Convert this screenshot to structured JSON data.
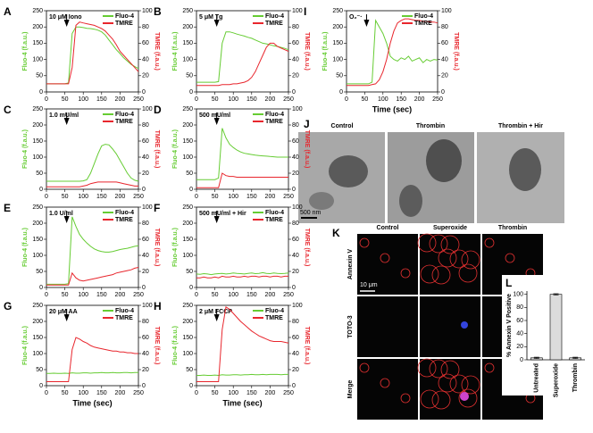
{
  "chart_data": [
    {
      "type": "line",
      "panel": "A",
      "annotation": "10 μM Iono",
      "x": [
        0,
        10,
        20,
        30,
        40,
        50,
        60,
        70,
        80,
        90,
        100,
        110,
        120,
        130,
        140,
        150,
        160,
        170,
        180,
        190,
        200,
        210,
        220,
        230,
        240,
        250
      ],
      "series": [
        {
          "name": "Fluo-4",
          "color": "#66cc33",
          "values": [
            25,
            25,
            25,
            25,
            25,
            25,
            28,
            180,
            200,
            200,
            198,
            196,
            195,
            193,
            190,
            185,
            175,
            160,
            145,
            130,
            118,
            105,
            95,
            85,
            78,
            72
          ]
        },
        {
          "name": "TMRE",
          "color": "#e8262d",
          "axis": "y2",
          "values": [
            10,
            10,
            10,
            10,
            10,
            10,
            10,
            30,
            82,
            86,
            85,
            84,
            83,
            82,
            80,
            78,
            75,
            70,
            65,
            58,
            50,
            45,
            40,
            35,
            30,
            25
          ]
        }
      ],
      "xlim": [
        0,
        250
      ],
      "xticks": [
        0,
        50,
        100,
        150,
        200,
        250
      ],
      "ylim": [
        0,
        250
      ],
      "yticks": [
        0,
        50,
        100,
        150,
        200,
        250
      ],
      "y2lim": [
        0,
        100
      ],
      "y2ticks": [
        0,
        20,
        40,
        60,
        80,
        100
      ],
      "ylabel": "Fluo-4 (f.a.u.)",
      "y2label": "TMRE (f.a.u.)"
    },
    {
      "type": "line",
      "panel": "B",
      "annotation": "5 μM Tg",
      "x": [
        0,
        10,
        20,
        30,
        40,
        50,
        60,
        70,
        80,
        90,
        100,
        110,
        120,
        130,
        140,
        150,
        160,
        170,
        180,
        190,
        200,
        210,
        220,
        230,
        240,
        250
      ],
      "series": [
        {
          "name": "Fluo-4",
          "color": "#66cc33",
          "values": [
            30,
            30,
            30,
            30,
            30,
            30,
            32,
            150,
            185,
            185,
            182,
            178,
            175,
            172,
            168,
            165,
            160,
            155,
            150,
            148,
            145,
            142,
            140,
            137,
            134,
            130
          ]
        },
        {
          "name": "TMRE",
          "color": "#e8262d",
          "axis": "y2",
          "values": [
            8,
            8,
            8,
            8,
            8,
            8,
            8,
            9,
            9,
            9,
            10,
            10,
            11,
            12,
            14,
            18,
            25,
            35,
            45,
            55,
            60,
            60,
            56,
            54,
            52,
            50
          ]
        }
      ],
      "xlim": [
        0,
        250
      ],
      "xticks": [
        0,
        50,
        100,
        150,
        200,
        250
      ],
      "ylim": [
        0,
        250
      ],
      "yticks": [
        0,
        50,
        100,
        150,
        200,
        250
      ],
      "y2lim": [
        0,
        100
      ],
      "y2ticks": [
        0,
        20,
        40,
        60,
        80,
        100
      ],
      "ylabel": "Fluo-4 (f.a.u.)",
      "y2label": "TMRE (f.a.u.)"
    },
    {
      "type": "line",
      "panel": "C",
      "annotation": "1.0 mU/ml",
      "x": [
        0,
        10,
        20,
        30,
        40,
        50,
        60,
        70,
        80,
        90,
        100,
        110,
        120,
        130,
        140,
        150,
        160,
        170,
        180,
        190,
        200,
        210,
        220,
        230,
        240,
        250
      ],
      "series": [
        {
          "name": "Fluo-4",
          "color": "#66cc33",
          "values": [
            25,
            25,
            25,
            25,
            25,
            25,
            25,
            25,
            25,
            25,
            26,
            30,
            50,
            80,
            110,
            135,
            140,
            138,
            125,
            110,
            90,
            70,
            50,
            35,
            28,
            25
          ]
        },
        {
          "name": "TMRE",
          "color": "#e8262d",
          "axis": "y2",
          "values": [
            3,
            3,
            3,
            3,
            3,
            3,
            3,
            3,
            3,
            3,
            4,
            5,
            7,
            8,
            9,
            9,
            9,
            9,
            9,
            9,
            8,
            7,
            6,
            5,
            4,
            4
          ]
        }
      ],
      "xlim": [
        0,
        250
      ],
      "xticks": [
        0,
        50,
        100,
        150,
        200,
        250
      ],
      "ylim": [
        0,
        250
      ],
      "yticks": [
        0,
        50,
        100,
        150,
        200,
        250
      ],
      "y2lim": [
        0,
        100
      ],
      "y2ticks": [
        0,
        20,
        40,
        60,
        80,
        100
      ],
      "ylabel": "Fluo-4 (f.a.u.)",
      "y2label": "TMRE (f.a.u.)"
    },
    {
      "type": "line",
      "panel": "D",
      "annotation": "500 mU/ml",
      "x": [
        0,
        10,
        20,
        30,
        40,
        50,
        60,
        70,
        80,
        90,
        100,
        110,
        120,
        130,
        140,
        150,
        160,
        170,
        180,
        190,
        200,
        210,
        220,
        230,
        240,
        250
      ],
      "series": [
        {
          "name": "Fluo-4",
          "color": "#66cc33",
          "values": [
            30,
            30,
            30,
            30,
            30,
            30,
            35,
            190,
            160,
            140,
            130,
            122,
            116,
            112,
            110,
            108,
            106,
            105,
            104,
            103,
            102,
            101,
            100,
            100,
            100,
            100
          ]
        },
        {
          "name": "TMRE",
          "color": "#e8262d",
          "axis": "y2",
          "values": [
            2,
            2,
            2,
            2,
            2,
            2,
            2,
            20,
            17,
            16,
            16,
            15,
            15,
            15,
            15,
            15,
            15,
            15,
            15,
            15,
            15,
            15,
            15,
            15,
            15,
            15
          ]
        }
      ],
      "xlim": [
        0,
        250
      ],
      "xticks": [
        0,
        50,
        100,
        150,
        200,
        250
      ],
      "ylim": [
        0,
        250
      ],
      "yticks": [
        0,
        50,
        100,
        150,
        200,
        250
      ],
      "y2lim": [
        0,
        100
      ],
      "y2ticks": [
        0,
        20,
        40,
        60,
        80,
        100
      ],
      "ylabel": "Fluo-4 (f.a.u.)",
      "y2label": "TMRE (f.a.u.)"
    },
    {
      "type": "line",
      "panel": "E",
      "annotation": "1.0 U/ml",
      "x": [
        0,
        10,
        20,
        30,
        40,
        50,
        60,
        70,
        80,
        90,
        100,
        110,
        120,
        130,
        140,
        150,
        160,
        170,
        180,
        190,
        200,
        210,
        220,
        230,
        240,
        250
      ],
      "series": [
        {
          "name": "Fluo-4",
          "color": "#66cc33",
          "values": [
            10,
            10,
            10,
            10,
            10,
            10,
            12,
            220,
            190,
            165,
            150,
            138,
            128,
            120,
            115,
            112,
            110,
            110,
            112,
            115,
            118,
            120,
            122,
            125,
            128,
            130
          ]
        },
        {
          "name": "TMRE",
          "color": "#e8262d",
          "axis": "y2",
          "values": [
            3,
            3,
            3,
            3,
            3,
            3,
            3,
            18,
            12,
            9,
            8,
            9,
            10,
            11,
            12,
            13,
            14,
            15,
            16,
            18,
            19,
            20,
            21,
            22,
            24,
            25
          ]
        }
      ],
      "xlim": [
        0,
        250
      ],
      "xticks": [
        0,
        50,
        100,
        150,
        200,
        250
      ],
      "ylim": [
        0,
        250
      ],
      "yticks": [
        0,
        50,
        100,
        150,
        200,
        250
      ],
      "y2lim": [
        0,
        100
      ],
      "y2ticks": [
        0,
        20,
        40,
        60,
        80,
        100
      ],
      "ylabel": "Fluo-4 (f.a.u.)",
      "y2label": "TMRE (f.a.u.)"
    },
    {
      "type": "line",
      "panel": "F",
      "annotation": "500 mU/ml + Hir",
      "x": [
        0,
        10,
        20,
        30,
        40,
        50,
        60,
        70,
        80,
        90,
        100,
        110,
        120,
        130,
        140,
        150,
        160,
        170,
        180,
        190,
        200,
        210,
        220,
        230,
        240,
        250
      ],
      "series": [
        {
          "name": "Fluo-4",
          "color": "#66cc33",
          "values": [
            42,
            41,
            43,
            42,
            40,
            42,
            43,
            44,
            42,
            43,
            45,
            44,
            43,
            42,
            44,
            45,
            43,
            44,
            46,
            44,
            43,
            45,
            44,
            43,
            44,
            45
          ]
        },
        {
          "name": "TMRE",
          "color": "#e8262d",
          "axis": "y2",
          "values": [
            12,
            12,
            13,
            12,
            12,
            13,
            12,
            14,
            13,
            13,
            14,
            13,
            13,
            14,
            13,
            14,
            14,
            13,
            14,
            14,
            13,
            14,
            14,
            13,
            14,
            14
          ]
        }
      ],
      "xlim": [
        0,
        250
      ],
      "xticks": [
        0,
        50,
        100,
        150,
        200,
        250
      ],
      "ylim": [
        0,
        250
      ],
      "yticks": [
        0,
        50,
        100,
        150,
        200,
        250
      ],
      "y2lim": [
        0,
        100
      ],
      "y2ticks": [
        0,
        20,
        40,
        60,
        80,
        100
      ],
      "ylabel": "Fluo-4 (f.a.u.)",
      "y2label": "TMRE (f.a.u.)"
    },
    {
      "type": "line",
      "panel": "G",
      "annotation": "20 μM AA",
      "x": [
        0,
        10,
        20,
        30,
        40,
        50,
        60,
        70,
        80,
        90,
        100,
        110,
        120,
        130,
        140,
        150,
        160,
        170,
        180,
        190,
        200,
        210,
        220,
        230,
        240,
        250
      ],
      "series": [
        {
          "name": "Fluo-4",
          "color": "#66cc33",
          "values": [
            38,
            38,
            39,
            38,
            38,
            39,
            38,
            40,
            39,
            39,
            40,
            40,
            39,
            40,
            40,
            41,
            40,
            40,
            41,
            40,
            40,
            41,
            41,
            40,
            41,
            41
          ]
        },
        {
          "name": "TMRE",
          "color": "#e8262d",
          "axis": "y2",
          "values": [
            5,
            5,
            5,
            5,
            5,
            5,
            5,
            45,
            60,
            58,
            55,
            53,
            50,
            48,
            47,
            46,
            45,
            44,
            43,
            43,
            42,
            42,
            41,
            41,
            40,
            40
          ]
        }
      ],
      "xlim": [
        0,
        250
      ],
      "xticks": [
        0,
        50,
        100,
        150,
        200,
        250
      ],
      "ylim": [
        0,
        250
      ],
      "yticks": [
        0,
        50,
        100,
        150,
        200,
        250
      ],
      "y2lim": [
        0,
        100
      ],
      "y2ticks": [
        0,
        20,
        40,
        60,
        80,
        100
      ],
      "ylabel": "Fluo-4 (f.a.u.)",
      "y2label": "TMRE (f.a.u.)",
      "xlabel": "Time (sec)"
    },
    {
      "type": "line",
      "panel": "H",
      "annotation": "2 μM FCCP",
      "x": [
        0,
        10,
        20,
        30,
        40,
        50,
        60,
        70,
        80,
        90,
        100,
        110,
        120,
        130,
        140,
        150,
        160,
        170,
        180,
        190,
        200,
        210,
        220,
        230,
        240,
        250
      ],
      "series": [
        {
          "name": "Fluo-4",
          "color": "#66cc33",
          "values": [
            32,
            32,
            33,
            32,
            32,
            33,
            32,
            34,
            33,
            33,
            34,
            34,
            33,
            34,
            34,
            35,
            34,
            34,
            35,
            34,
            35,
            35,
            35,
            34,
            35,
            35
          ]
        },
        {
          "name": "TMRE",
          "color": "#e8262d",
          "axis": "y2",
          "values": [
            5,
            5,
            5,
            5,
            5,
            5,
            5,
            70,
            98,
            95,
            90,
            85,
            80,
            76,
            72,
            68,
            65,
            62,
            60,
            58,
            56,
            55,
            55,
            55,
            54,
            53
          ]
        }
      ],
      "xlim": [
        0,
        250
      ],
      "xticks": [
        0,
        50,
        100,
        150,
        200,
        250
      ],
      "ylim": [
        0,
        250
      ],
      "yticks": [
        0,
        50,
        100,
        150,
        200,
        250
      ],
      "y2lim": [
        0,
        100
      ],
      "y2ticks": [
        0,
        20,
        40,
        60,
        80,
        100
      ],
      "ylabel": "Fluo-4 (f.a.u.)",
      "y2label": "TMRE (f.a.u.)",
      "xlabel": "Time (sec)"
    },
    {
      "type": "line",
      "panel": "I",
      "annotation": "O₂⁻·",
      "x": [
        0,
        10,
        20,
        30,
        40,
        50,
        60,
        70,
        80,
        90,
        100,
        110,
        120,
        130,
        140,
        150,
        160,
        170,
        180,
        190,
        200,
        210,
        220,
        230,
        240,
        250
      ],
      "series": [
        {
          "name": "Fluo-4",
          "color": "#66cc33",
          "values": [
            25,
            25,
            25,
            25,
            25,
            25,
            25,
            30,
            220,
            200,
            180,
            150,
            110,
            100,
            95,
            105,
            100,
            110,
            95,
            100,
            105,
            90,
            100,
            95,
            100,
            98
          ]
        },
        {
          "name": "TMRE",
          "color": "#e8262d",
          "axis": "y2",
          "values": [
            8,
            8,
            8,
            8,
            8,
            8,
            8,
            9,
            10,
            15,
            25,
            40,
            60,
            75,
            85,
            88,
            90,
            90,
            89,
            88,
            88,
            87,
            87,
            86,
            86,
            85
          ]
        }
      ],
      "xlim": [
        0,
        250
      ],
      "xticks": [
        0,
        50,
        100,
        150,
        200,
        250
      ],
      "ylim": [
        0,
        250
      ],
      "yticks": [
        0,
        50,
        100,
        150,
        200,
        250
      ],
      "y2lim": [
        0,
        100
      ],
      "y2ticks": [
        0,
        20,
        40,
        60,
        80,
        100
      ],
      "ylabel": "Fluo-4 (f.a.u.)",
      "y2label": "TMRE (f.a.u.)",
      "xlabel": "Time (sec)"
    },
    {
      "type": "bar",
      "panel": "L",
      "categories": [
        "Untreated",
        "Superoxide",
        "Thrombin"
      ],
      "values": [
        3,
        100,
        3
      ],
      "errors": [
        1,
        1,
        1
      ],
      "color": "#dcdcdc",
      "ylim": [
        0,
        105
      ],
      "yticks": [
        0,
        20,
        40,
        60,
        80,
        100
      ],
      "ylabel": "% Annexin V Positive"
    }
  ],
  "micrographs": {
    "panel": "J",
    "columns": [
      "Control",
      "Thrombin",
      "Thrombin + Hir"
    ],
    "scale": "500 nm"
  },
  "fluorescence": {
    "panel": "K",
    "columns": [
      "Control",
      "Superoxide",
      "Thrombin"
    ],
    "rows": [
      "Annexin V",
      "TOTO-3",
      "Merge"
    ],
    "scale": "10 μm"
  }
}
